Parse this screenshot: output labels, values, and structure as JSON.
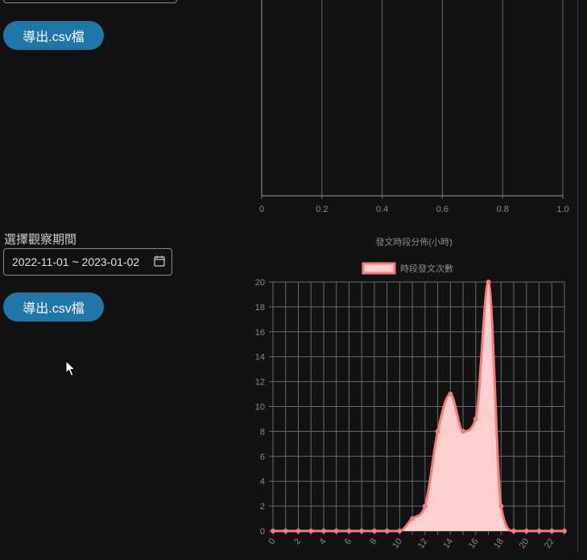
{
  "controls": {
    "export_label": "導出.csv檔",
    "period_label": "選擇觀察期間",
    "date_range_value": "2022-11-01 ~ 2023-01-02"
  },
  "icons": {
    "calendar": "calendar-icon",
    "cursor": "mouse-pointer-icon"
  },
  "colors": {
    "background": "#121212",
    "button": "#2176a8",
    "series_line": "#f47c7c",
    "series_fill": "#ffcfcf",
    "grid": "#6a6a6a"
  },
  "chart_data": [
    {
      "type": "line",
      "title": "",
      "x_ticks": [
        "0",
        "0.2",
        "0.4",
        "0.6",
        "0.8",
        "1.0"
      ],
      "xlim": [
        0,
        1
      ],
      "grid": true,
      "series": []
    },
    {
      "type": "area",
      "title": "發文時段分佈(小時)",
      "legend_position": "top",
      "x": [
        0,
        1,
        2,
        3,
        4,
        5,
        6,
        7,
        8,
        9,
        10,
        11,
        12,
        13,
        14,
        15,
        16,
        17,
        18,
        19,
        20,
        21,
        22,
        23
      ],
      "x_ticks": [
        "0",
        "2",
        "4",
        "6",
        "8",
        "10",
        "12",
        "14",
        "16",
        "18",
        "20",
        "22"
      ],
      "y_ticks": [
        "0",
        "2",
        "4",
        "6",
        "8",
        "10",
        "12",
        "14",
        "16",
        "18",
        "20"
      ],
      "ylim": [
        0,
        20
      ],
      "grid": true,
      "series": [
        {
          "name": "時段發文次數",
          "values": [
            0,
            0,
            0,
            0,
            0,
            0,
            0,
            0,
            0,
            0,
            0,
            1,
            2,
            8,
            11,
            8,
            9,
            20,
            2,
            0,
            0,
            0,
            0,
            0
          ]
        }
      ]
    }
  ]
}
